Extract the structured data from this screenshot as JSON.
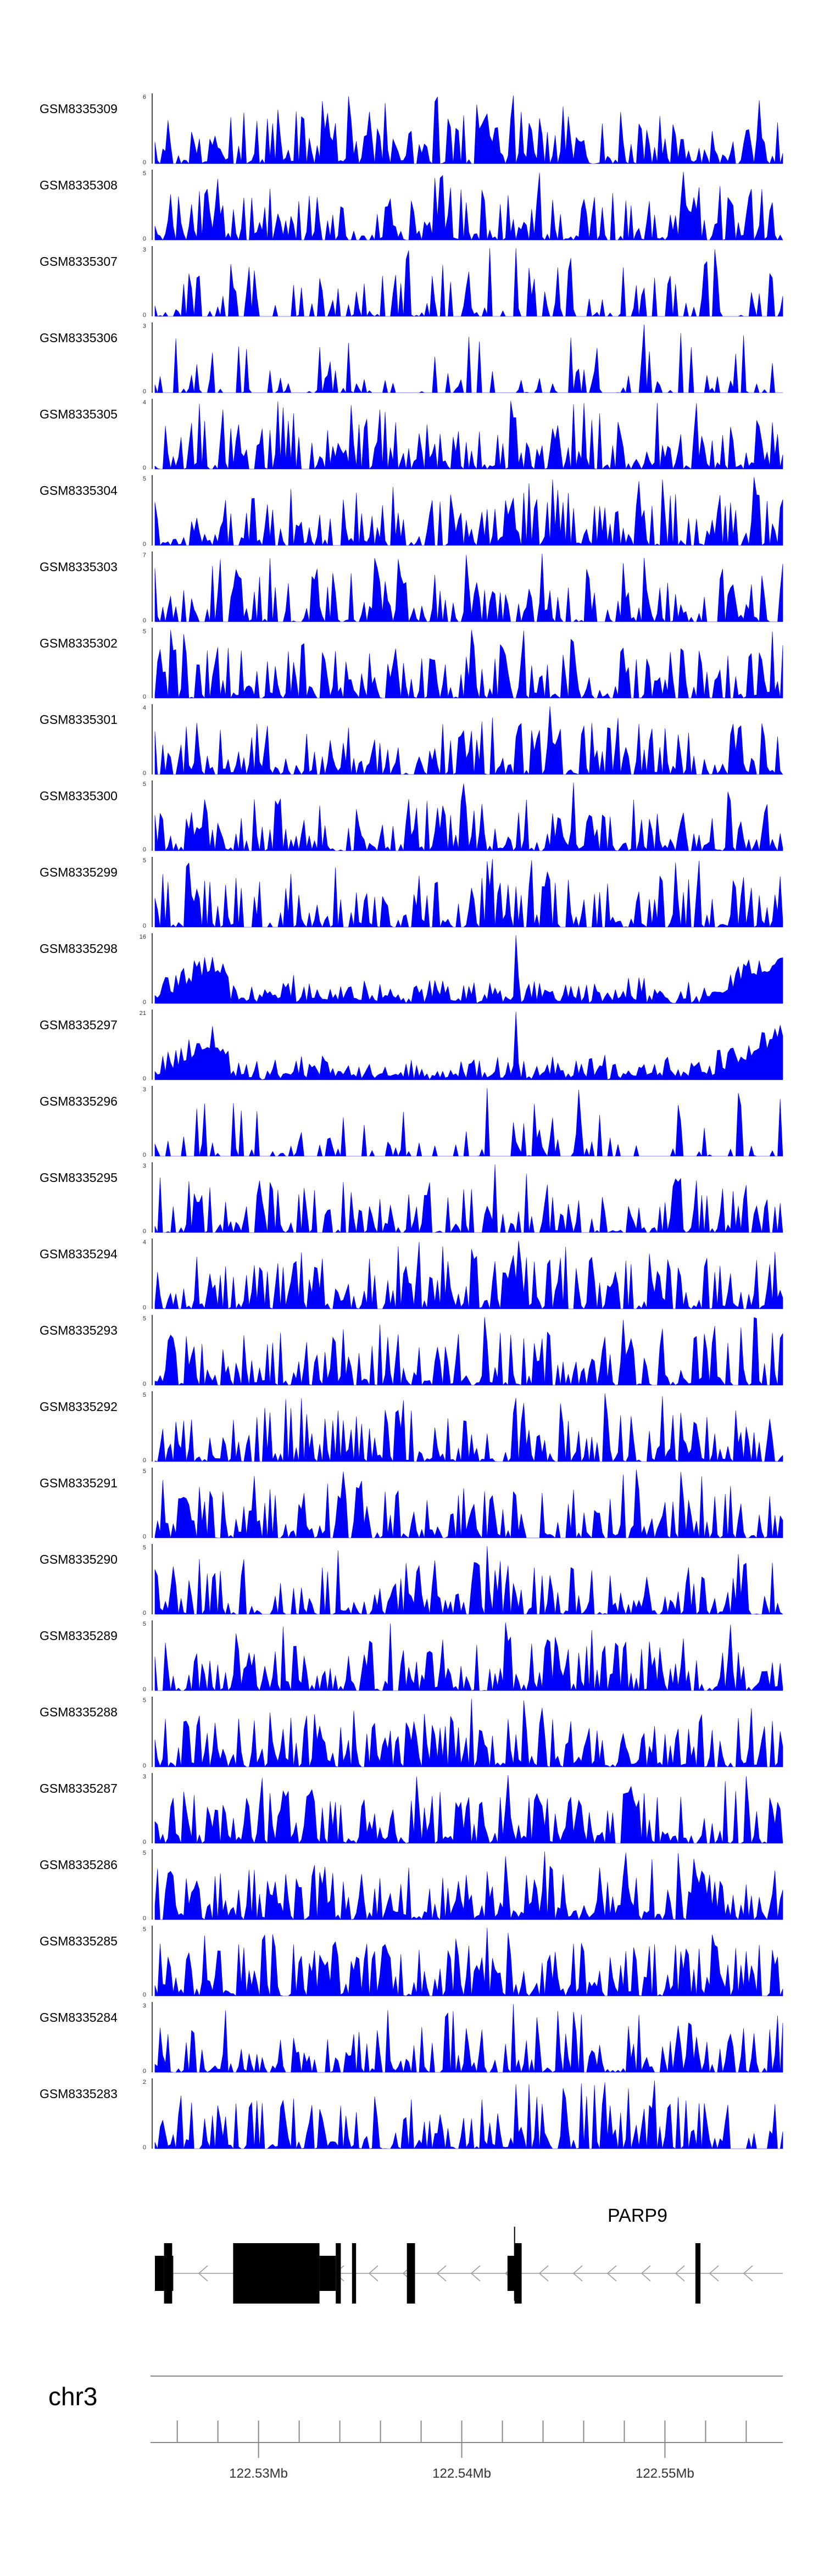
{
  "chart_data": {
    "type": "area",
    "chromosome": "chr3",
    "region": {
      "start": 122524900,
      "end": 122555800
    },
    "x_ticks": [
      {
        "pos": 122530000,
        "label": "122.53Mb"
      },
      {
        "pos": 122540000,
        "label": "122.54Mb"
      },
      {
        "pos": 122550000,
        "label": "122.55Mb"
      }
    ],
    "x_minor_step": 2000,
    "color": "#0000ff",
    "tracks": [
      {
        "label": "GSM8335309",
        "ymax": 6,
        "seed": 9309,
        "sparsity": 0.25,
        "trend": "flat"
      },
      {
        "label": "GSM8335308",
        "ymax": 5,
        "seed": 9308,
        "sparsity": 0.25,
        "trend": "flat"
      },
      {
        "label": "GSM8335307",
        "ymax": 3,
        "seed": 9307,
        "sparsity": 0.55,
        "trend": "flat"
      },
      {
        "label": "GSM8335306",
        "ymax": 3,
        "seed": 9306,
        "sparsity": 0.65,
        "trend": "flat"
      },
      {
        "label": "GSM8335305",
        "ymax": 4,
        "seed": 9305,
        "sparsity": 0.2,
        "trend": "flat"
      },
      {
        "label": "GSM8335304",
        "ymax": 5,
        "seed": 9304,
        "sparsity": 0.25,
        "trend": "flat"
      },
      {
        "label": "GSM8335303",
        "ymax": 7,
        "seed": 9303,
        "sparsity": 0.3,
        "trend": "flat"
      },
      {
        "label": "GSM8335302",
        "ymax": 5,
        "seed": 9302,
        "sparsity": 0.2,
        "trend": "flat"
      },
      {
        "label": "GSM8335301",
        "ymax": 4,
        "seed": 9301,
        "sparsity": 0.25,
        "trend": "flat"
      },
      {
        "label": "GSM8335300",
        "ymax": 5,
        "seed": 9300,
        "sparsity": 0.2,
        "trend": "flat"
      },
      {
        "label": "GSM8335299",
        "ymax": 5,
        "seed": 9299,
        "sparsity": 0.3,
        "trend": "flat"
      },
      {
        "label": "GSM8335298",
        "ymax": 16,
        "seed": 9298,
        "sparsity": 0.1,
        "trend": "ends"
      },
      {
        "label": "GSM8335297",
        "ymax": 21,
        "seed": 9297,
        "sparsity": 0.1,
        "trend": "ends"
      },
      {
        "label": "GSM8335296",
        "ymax": 3,
        "seed": 9296,
        "sparsity": 0.7,
        "trend": "flat"
      },
      {
        "label": "GSM8335295",
        "ymax": 3,
        "seed": 9295,
        "sparsity": 0.4,
        "trend": "flat"
      },
      {
        "label": "GSM8335294",
        "ymax": 4,
        "seed": 9294,
        "sparsity": 0.2,
        "trend": "flat"
      },
      {
        "label": "GSM8335293",
        "ymax": 5,
        "seed": 9293,
        "sparsity": 0.2,
        "trend": "flat"
      },
      {
        "label": "GSM8335292",
        "ymax": 5,
        "seed": 9292,
        "sparsity": 0.25,
        "trend": "flat"
      },
      {
        "label": "GSM8335291",
        "ymax": 5,
        "seed": 9291,
        "sparsity": 0.25,
        "trend": "flat"
      },
      {
        "label": "GSM8335290",
        "ymax": 5,
        "seed": 9290,
        "sparsity": 0.25,
        "trend": "flat"
      },
      {
        "label": "GSM8335289",
        "ymax": 5,
        "seed": 9289,
        "sparsity": 0.25,
        "trend": "flat"
      },
      {
        "label": "GSM8335288",
        "ymax": 5,
        "seed": 9288,
        "sparsity": 0.15,
        "trend": "flat"
      },
      {
        "label": "GSM8335287",
        "ymax": 3,
        "seed": 9287,
        "sparsity": 0.1,
        "trend": "flat"
      },
      {
        "label": "GSM8335286",
        "ymax": 5,
        "seed": 9286,
        "sparsity": 0.15,
        "trend": "flat"
      },
      {
        "label": "GSM8335285",
        "ymax": 5,
        "seed": 9285,
        "sparsity": 0.15,
        "trend": "flat"
      },
      {
        "label": "GSM8335284",
        "ymax": 3,
        "seed": 9284,
        "sparsity": 0.35,
        "trend": "flat"
      },
      {
        "label": "GSM8335283",
        "ymax": 2,
        "seed": 9283,
        "sparsity": 0.25,
        "trend": "flat"
      }
    ],
    "gene": {
      "name": "PARP9",
      "strand": "-",
      "intron": {
        "start": 122524900,
        "end": 122555800
      },
      "exons": [
        {
          "start": 122524900,
          "end": 122525350,
          "thick": false
        },
        {
          "start": 122525350,
          "end": 122525750,
          "thick": true
        },
        {
          "start": 122525750,
          "end": 122525800,
          "thick": false
        },
        {
          "start": 122528750,
          "end": 122533000,
          "thick": true
        },
        {
          "start": 122533000,
          "end": 122533800,
          "thick": false
        },
        {
          "start": 122533800,
          "end": 122534050,
          "thick": true
        },
        {
          "start": 122534600,
          "end": 122534800,
          "thick": true
        },
        {
          "start": 122537300,
          "end": 122537700,
          "thick": true
        },
        {
          "start": 122542250,
          "end": 122542600,
          "thick": false
        },
        {
          "start": 122542600,
          "end": 122542950,
          "thick": true
        },
        {
          "start": 122551500,
          "end": 122551750,
          "thick": true
        }
      ]
    }
  }
}
